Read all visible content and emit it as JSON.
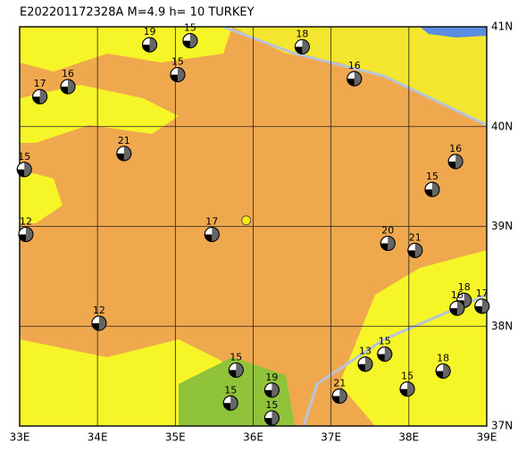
{
  "map": {
    "title": "E202201172328A M=4.9 h= 10 TURKEY",
    "lon_lim": [
      33,
      39
    ],
    "lat_lim": [
      37,
      41
    ],
    "lon_ticks": [
      {
        "value": 33,
        "label": "33E"
      },
      {
        "value": 34,
        "label": "34E"
      },
      {
        "value": 35,
        "label": "35E"
      },
      {
        "value": 36,
        "label": "36E"
      },
      {
        "value": 37,
        "label": "37E"
      },
      {
        "value": 38,
        "label": "38E"
      },
      {
        "value": 39,
        "label": "39E"
      }
    ],
    "lat_ticks": [
      {
        "value": 37,
        "label": "37N"
      },
      {
        "value": 38,
        "label": "38N"
      },
      {
        "value": 39,
        "label": "39N"
      },
      {
        "value": 40,
        "label": "40N"
      },
      {
        "value": 41,
        "label": "41N"
      }
    ],
    "epicenter": {
      "lon": 35.91,
      "lat": 39.06
    },
    "events": [
      {
        "depth": 15,
        "lon": 35.19,
        "lat": 40.86
      },
      {
        "depth": 19,
        "lon": 34.67,
        "lat": 40.82
      },
      {
        "depth": 18,
        "lon": 36.63,
        "lat": 40.8
      },
      {
        "depth": 15,
        "lon": 35.03,
        "lat": 40.52
      },
      {
        "depth": 16,
        "lon": 37.3,
        "lat": 40.48
      },
      {
        "depth": 17,
        "lon": 33.26,
        "lat": 40.3
      },
      {
        "depth": 16,
        "lon": 33.62,
        "lat": 40.4
      },
      {
        "depth": 21,
        "lon": 34.34,
        "lat": 39.73
      },
      {
        "depth": 15,
        "lon": 33.06,
        "lat": 39.57
      },
      {
        "depth": 16,
        "lon": 38.6,
        "lat": 39.65
      },
      {
        "depth": 15,
        "lon": 38.3,
        "lat": 39.37
      },
      {
        "depth": 12,
        "lon": 33.08,
        "lat": 38.92
      },
      {
        "depth": 17,
        "lon": 35.47,
        "lat": 38.92
      },
      {
        "depth": 20,
        "lon": 37.73,
        "lat": 38.83
      },
      {
        "depth": 21,
        "lon": 38.08,
        "lat": 38.76
      },
      {
        "depth": 12,
        "lon": 34.02,
        "lat": 38.03
      },
      {
        "depth": 17,
        "lon": 38.94,
        "lat": 38.2
      },
      {
        "depth": 18,
        "lon": 38.71,
        "lat": 38.26
      },
      {
        "depth": 16,
        "lon": 38.62,
        "lat": 38.18
      },
      {
        "depth": 15,
        "lon": 37.69,
        "lat": 37.72
      },
      {
        "depth": 13,
        "lon": 37.44,
        "lat": 37.62
      },
      {
        "depth": 15,
        "lon": 35.78,
        "lat": 37.56
      },
      {
        "depth": 15,
        "lon": 35.71,
        "lat": 37.23
      },
      {
        "depth": 19,
        "lon": 36.24,
        "lat": 37.36
      },
      {
        "depth": 15,
        "lon": 36.24,
        "lat": 37.08
      },
      {
        "depth": 21,
        "lon": 37.11,
        "lat": 37.3
      },
      {
        "depth": 15,
        "lon": 37.98,
        "lat": 37.37
      },
      {
        "depth": 18,
        "lon": 38.44,
        "lat": 37.55
      }
    ]
  }
}
